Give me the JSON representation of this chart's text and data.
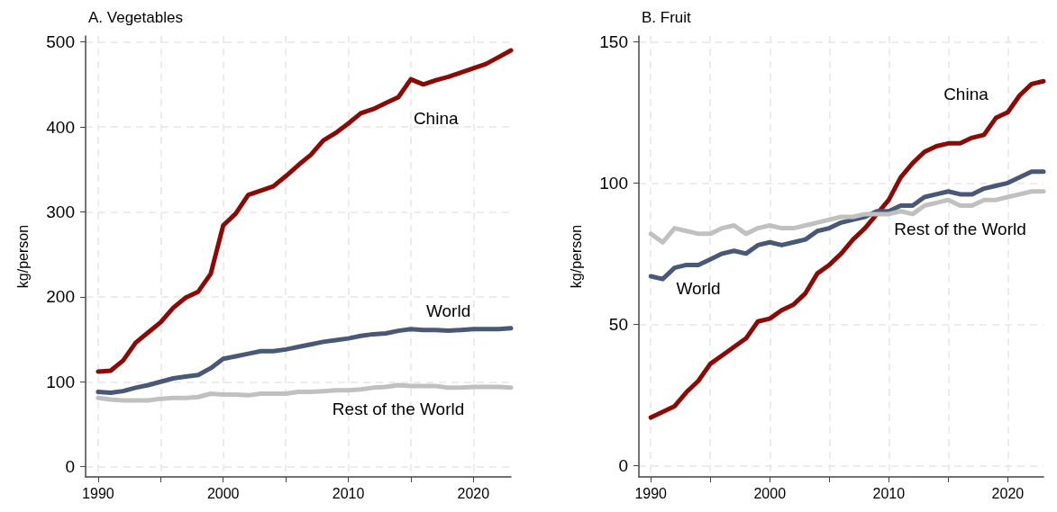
{
  "chart_data": [
    {
      "type": "line",
      "title": "A. Vegetables",
      "ylabel": "kg/person",
      "x": [
        1990,
        1991,
        1992,
        1993,
        1994,
        1995,
        1996,
        1997,
        1998,
        1999,
        2000,
        2001,
        2002,
        2003,
        2004,
        2005,
        2006,
        2007,
        2008,
        2009,
        2010,
        2011,
        2012,
        2013,
        2014,
        2015,
        2016,
        2017,
        2018,
        2019,
        2020,
        2021,
        2022,
        2023
      ],
      "series": [
        {
          "name": "China",
          "color": "#8b0a06",
          "values": [
            112,
            113,
            125,
            146,
            158,
            170,
            187,
            199,
            206,
            227,
            284,
            298,
            320,
            325,
            330,
            342,
            355,
            367,
            384,
            393,
            404,
            416,
            421,
            428,
            435,
            456,
            450,
            455,
            459,
            464,
            469,
            474,
            482,
            490
          ]
        },
        {
          "name": "World",
          "color": "#4a5878",
          "values": [
            88,
            87,
            89,
            93,
            96,
            100,
            104,
            106,
            108,
            116,
            127,
            130,
            133,
            136,
            136,
            138,
            141,
            144,
            147,
            149,
            151,
            154,
            156,
            157,
            160,
            162,
            161,
            161,
            160,
            161,
            162,
            162,
            162,
            163
          ]
        },
        {
          "name": "Rest of the World",
          "color": "#c0c0c0",
          "values": [
            81,
            79,
            78,
            78,
            78,
            80,
            81,
            81,
            82,
            86,
            85,
            85,
            84,
            86,
            86,
            86,
            88,
            88,
            89,
            90,
            90,
            91,
            93,
            94,
            96,
            95,
            95,
            95,
            93,
            93,
            94,
            94,
            94,
            93
          ]
        }
      ],
      "xlim": [
        1989,
        2023
      ],
      "xticks": [
        1990,
        {
          "value": 1995,
          "label": null
        },
        2000,
        {
          "value": 2005,
          "label": null
        },
        2010,
        {
          "value": 2015,
          "label": null
        },
        2020
      ],
      "ylim": [
        -12,
        507
      ],
      "yticks": [
        0,
        100,
        200,
        300,
        400,
        500
      ],
      "grid": true,
      "legend": false,
      "marker": "none",
      "line_style": "solid"
    },
    {
      "type": "line",
      "title": "B. Fruit",
      "ylabel": "kg/person",
      "x": [
        1990,
        1991,
        1992,
        1993,
        1994,
        1995,
        1996,
        1997,
        1998,
        1999,
        2000,
        2001,
        2002,
        2003,
        2004,
        2005,
        2006,
        2007,
        2008,
        2009,
        2010,
        2011,
        2012,
        2013,
        2014,
        2015,
        2016,
        2017,
        2018,
        2019,
        2020,
        2021,
        2022,
        2023
      ],
      "series": [
        {
          "name": "China",
          "color": "#8b0a06",
          "values": [
            17,
            19,
            21,
            26,
            30,
            36,
            39,
            42,
            45,
            51,
            52,
            55,
            57,
            61,
            68,
            71,
            75,
            80,
            84,
            89,
            94,
            102,
            107,
            111,
            113,
            114,
            114,
            116,
            117,
            123,
            125,
            131,
            135,
            136
          ]
        },
        {
          "name": "World",
          "color": "#4a5878",
          "values": [
            67,
            66,
            70,
            71,
            71,
            73,
            75,
            76,
            75,
            78,
            79,
            78,
            79,
            80,
            83,
            84,
            86,
            87,
            88,
            90,
            90,
            92,
            92,
            95,
            96,
            97,
            96,
            96,
            98,
            99,
            100,
            102,
            104,
            104
          ]
        },
        {
          "name": "Rest of the World",
          "color": "#c0c0c0",
          "values": [
            82,
            79,
            84,
            83,
            82,
            82,
            84,
            85,
            82,
            84,
            85,
            84,
            84,
            85,
            86,
            87,
            88,
            88,
            89,
            89,
            89,
            90,
            89,
            92,
            93,
            94,
            92,
            92,
            94,
            94,
            95,
            96,
            97,
            97
          ]
        }
      ],
      "xlim": [
        1989,
        2023
      ],
      "xticks": [
        1990,
        {
          "value": 1995,
          "label": null
        },
        2000,
        {
          "value": 2005,
          "label": null
        },
        2010,
        {
          "value": 2015,
          "label": null
        },
        2020
      ],
      "ylim": [
        -4,
        152
      ],
      "yticks": [
        0,
        50,
        100,
        150
      ],
      "grid": true,
      "legend": false,
      "marker": "none",
      "line_style": "solid"
    }
  ]
}
